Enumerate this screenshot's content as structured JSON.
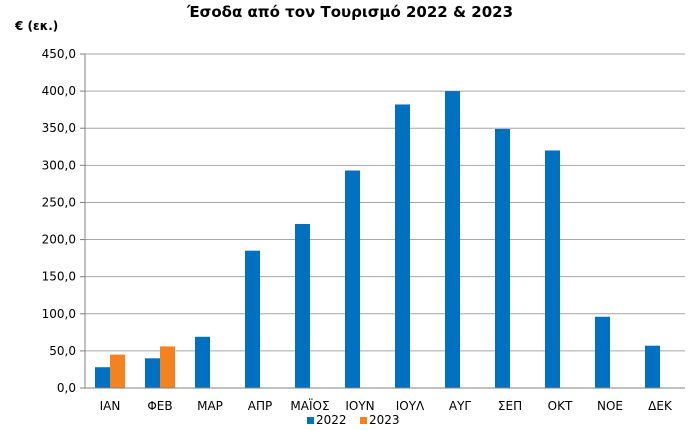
{
  "chart_data": {
    "type": "bar",
    "title": "Έσοδα από τον Τουρισμό 2022 & 2023",
    "ylabel": "€ (εκ.)",
    "xlabel": "",
    "categories": [
      "ΙΑΝ",
      "ΦΕΒ",
      "ΜΑΡ",
      "ΑΠΡ",
      "ΜΑΪΟΣ",
      "ΙΟΥΝ",
      "ΙΟΥΛ",
      "ΑΥΓ",
      "ΣΕΠ",
      "ΟΚΤ",
      "ΝΟΕ",
      "ΔΕΚ"
    ],
    "series": [
      {
        "name": "2022",
        "color": "#0070C0",
        "values": [
          28,
          40,
          69,
          185,
          221,
          293,
          382,
          400,
          349,
          320,
          96,
          57
        ]
      },
      {
        "name": "2023",
        "color": "#F58220",
        "values": [
          45,
          56,
          null,
          null,
          null,
          null,
          null,
          null,
          null,
          null,
          null,
          null
        ]
      }
    ],
    "ylim": [
      0,
      450
    ],
    "y_ticks": [
      "0,0",
      "50,0",
      "100,0",
      "150,0",
      "200,0",
      "250,0",
      "300,0",
      "350,0",
      "400,0",
      "450,0"
    ],
    "grid": true,
    "legend_position": "bottom"
  }
}
